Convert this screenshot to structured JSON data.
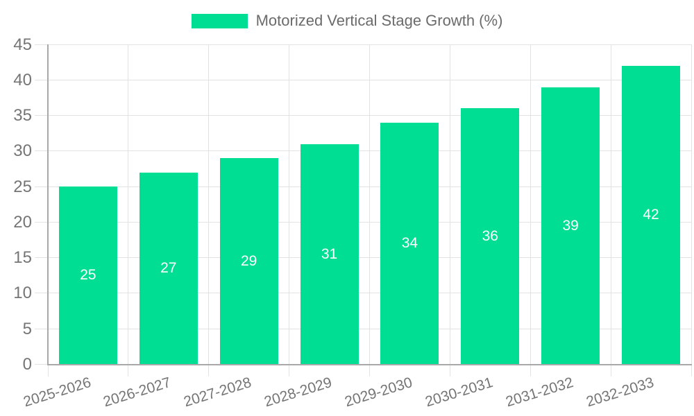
{
  "chart_data": {
    "type": "bar",
    "title": "Motorized Vertical Stage Growth (%)",
    "legend": {
      "label": "Motorized Vertical Stage Growth (%)",
      "position": "top-center"
    },
    "categories": [
      "2025-2026",
      "2026-2027",
      "2027-2028",
      "2028-2029",
      "2029-2030",
      "2030-2031",
      "2031-2032",
      "2032-2033"
    ],
    "series": [
      {
        "name": "Motorized Vertical Stage Growth (%)",
        "values": [
          25,
          27,
          29,
          31,
          34,
          36,
          39,
          42
        ]
      }
    ],
    "bar_value_labels_shown": true,
    "bar_value_label_position": "inside-center",
    "xlabel": "",
    "ylabel": "",
    "ylim": [
      0,
      45
    ],
    "yticks": [
      0,
      5,
      10,
      15,
      20,
      25,
      30,
      35,
      40,
      45
    ],
    "x_tick_rotation_deg": -17,
    "grid": true,
    "colors": {
      "bar": "#00de94",
      "bar_value_text": "#ffffff",
      "grid_line": "#e2e2e2",
      "axis_line": "#a8a8a8",
      "tick_text": "#757575",
      "legend_text": "#6b6b6b",
      "background": "#ffffff"
    }
  }
}
